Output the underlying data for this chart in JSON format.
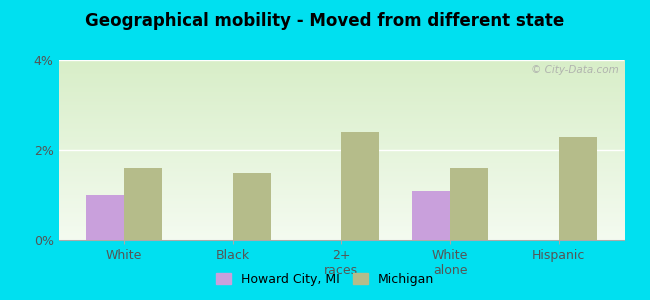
{
  "title": "Geographical mobility - Moved from different state",
  "categories": [
    "White",
    "Black",
    "2+\nraces",
    "White\nalone",
    "Hispanic"
  ],
  "howard_city": [
    1.0,
    0.0,
    0.0,
    1.1,
    0.0
  ],
  "michigan": [
    1.6,
    1.5,
    2.4,
    1.6,
    2.3
  ],
  "howard_color": "#c9a0dc",
  "michigan_color": "#b5bc8a",
  "ylim": [
    0,
    4
  ],
  "yticks": [
    0,
    2,
    4
  ],
  "ytick_labels": [
    "0%",
    "2%",
    "4%"
  ],
  "bg_outer": "#00e0f0",
  "bg_chart_top": "#d8eec8",
  "bg_chart_bottom": "#f4fbf0",
  "bar_width": 0.35,
  "legend_howard": "Howard City, MI",
  "legend_michigan": "Michigan",
  "watermark": "© City-Data.com"
}
